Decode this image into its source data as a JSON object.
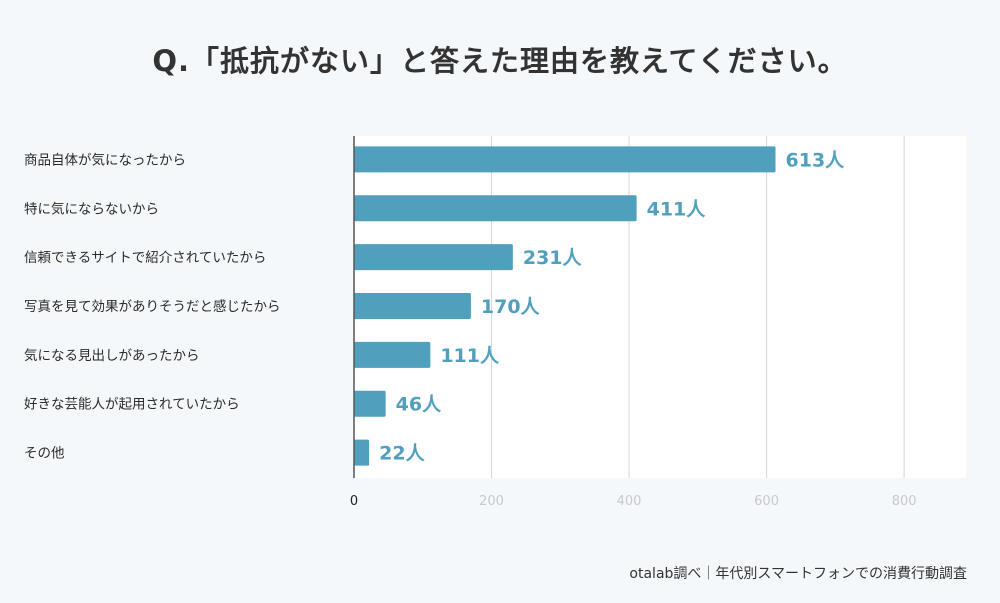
{
  "chart_data": {
    "type": "bar",
    "orientation": "horizontal",
    "title": "Q.「抵抗がない」と答えた理由を教えてください。",
    "categories": [
      "商品自体が気になったから",
      "特に気にならないから",
      "信頼できるサイトで紹介されていたから",
      "写真を見て効果がありそうだと感じたから",
      "気になる見出しがあったから",
      "好きな芸能人が起用されていたから",
      "その他"
    ],
    "values": [
      613,
      411,
      231,
      170,
      111,
      46,
      22
    ],
    "value_suffix": "人",
    "xlabel": "",
    "ylabel": "",
    "xlim": [
      0,
      890
    ],
    "xticks": [
      0,
      200,
      400,
      600,
      800
    ],
    "grid": true,
    "legend": "none",
    "bar_color": "#4f9fbd",
    "label_color": "#4f9fbd"
  },
  "footer": {
    "source": "otalab調べ｜年代別スマートフォンでの消費行動調査"
  }
}
